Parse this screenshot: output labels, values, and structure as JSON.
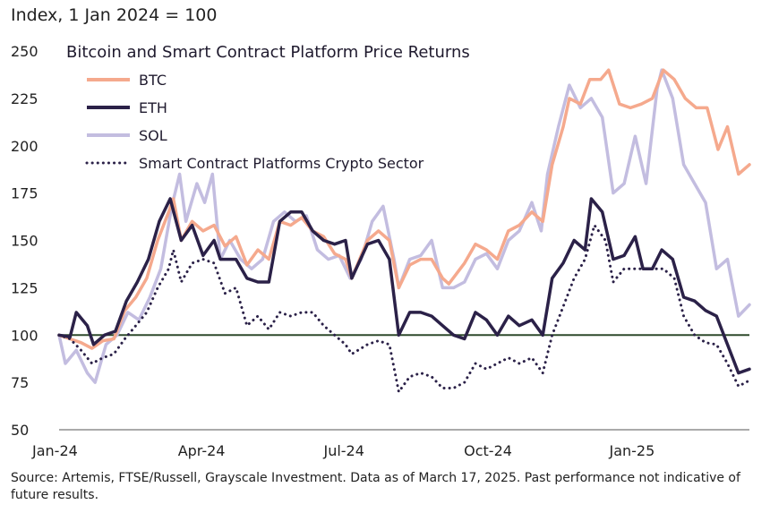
{
  "chart_data": {
    "type": "line",
    "title": "Bitcoin and Smart Contract Platform Price Returns",
    "unit_label": "Index, 1 Jan 2024 = 100",
    "ylim": [
      50,
      250
    ],
    "yticks": [
      50,
      75,
      100,
      125,
      150,
      175,
      200,
      225,
      250
    ],
    "x_start": "2024-01-01",
    "x_end": "2025-03-17",
    "xticks": [
      {
        "date": "2024-01-01",
        "label": "Jan-24"
      },
      {
        "date": "2024-04-01",
        "label": "Apr-24"
      },
      {
        "date": "2024-07-01",
        "label": "Jul-24"
      },
      {
        "date": "2024-10-01",
        "label": "Oct-24"
      },
      {
        "date": "2025-01-01",
        "label": "Jan-25"
      }
    ],
    "reference_line": {
      "value": 100,
      "color": "#2f4a2c"
    },
    "legend_position": "top-left",
    "series": [
      {
        "name": "BTC",
        "color": "#f5a98d",
        "style": "solid",
        "points": [
          [
            "2024-01-01",
            100
          ],
          [
            "2024-01-08",
            98
          ],
          [
            "2024-01-15",
            96
          ],
          [
            "2024-01-22",
            93
          ],
          [
            "2024-01-29",
            97
          ],
          [
            "2024-02-05",
            98
          ],
          [
            "2024-02-12",
            113
          ],
          [
            "2024-02-19",
            120
          ],
          [
            "2024-02-26",
            130
          ],
          [
            "2024-03-04",
            150
          ],
          [
            "2024-03-11",
            165
          ],
          [
            "2024-03-14",
            172
          ],
          [
            "2024-03-19",
            150
          ],
          [
            "2024-03-26",
            160
          ],
          [
            "2024-04-02",
            155
          ],
          [
            "2024-04-09",
            158
          ],
          [
            "2024-04-16",
            147
          ],
          [
            "2024-04-23",
            152
          ],
          [
            "2024-04-30",
            137
          ],
          [
            "2024-05-07",
            145
          ],
          [
            "2024-05-14",
            140
          ],
          [
            "2024-05-21",
            160
          ],
          [
            "2024-05-28",
            158
          ],
          [
            "2024-06-04",
            162
          ],
          [
            "2024-06-11",
            155
          ],
          [
            "2024-06-18",
            152
          ],
          [
            "2024-06-25",
            143
          ],
          [
            "2024-07-02",
            140
          ],
          [
            "2024-07-06",
            130
          ],
          [
            "2024-07-16",
            150
          ],
          [
            "2024-07-23",
            155
          ],
          [
            "2024-07-30",
            150
          ],
          [
            "2024-08-05",
            125
          ],
          [
            "2024-08-12",
            137
          ],
          [
            "2024-08-19",
            140
          ],
          [
            "2024-08-26",
            140
          ],
          [
            "2024-09-02",
            130
          ],
          [
            "2024-09-06",
            127
          ],
          [
            "2024-09-16",
            138
          ],
          [
            "2024-09-23",
            148
          ],
          [
            "2024-09-30",
            145
          ],
          [
            "2024-10-07",
            140
          ],
          [
            "2024-10-14",
            155
          ],
          [
            "2024-10-21",
            158
          ],
          [
            "2024-10-29",
            165
          ],
          [
            "2024-11-05",
            160
          ],
          [
            "2024-11-11",
            190
          ],
          [
            "2024-11-18",
            210
          ],
          [
            "2024-11-22",
            225
          ],
          [
            "2024-11-29",
            222
          ],
          [
            "2024-12-05",
            235
          ],
          [
            "2024-12-12",
            235
          ],
          [
            "2024-12-17",
            240
          ],
          [
            "2024-12-24",
            222
          ],
          [
            "2024-12-31",
            220
          ],
          [
            "2025-01-07",
            222
          ],
          [
            "2025-01-14",
            225
          ],
          [
            "2025-01-21",
            240
          ],
          [
            "2025-01-28",
            235
          ],
          [
            "2025-02-04",
            225
          ],
          [
            "2025-02-11",
            220
          ],
          [
            "2025-02-18",
            220
          ],
          [
            "2025-02-25",
            198
          ],
          [
            "2025-03-03",
            210
          ],
          [
            "2025-03-10",
            185
          ],
          [
            "2025-03-17",
            190
          ]
        ]
      },
      {
        "name": "ETH",
        "color": "#2b2148",
        "style": "solid",
        "points": [
          [
            "2024-01-01",
            100
          ],
          [
            "2024-01-08",
            99
          ],
          [
            "2024-01-12",
            112
          ],
          [
            "2024-01-19",
            105
          ],
          [
            "2024-01-23",
            95
          ],
          [
            "2024-01-30",
            100
          ],
          [
            "2024-02-06",
            102
          ],
          [
            "2024-02-13",
            118
          ],
          [
            "2024-02-20",
            128
          ],
          [
            "2024-02-27",
            140
          ],
          [
            "2024-03-05",
            160
          ],
          [
            "2024-03-12",
            172
          ],
          [
            "2024-03-19",
            150
          ],
          [
            "2024-03-26",
            158
          ],
          [
            "2024-04-02",
            142
          ],
          [
            "2024-04-09",
            150
          ],
          [
            "2024-04-13",
            140
          ],
          [
            "2024-04-23",
            140
          ],
          [
            "2024-04-30",
            130
          ],
          [
            "2024-05-07",
            128
          ],
          [
            "2024-05-14",
            128
          ],
          [
            "2024-05-21",
            160
          ],
          [
            "2024-05-28",
            165
          ],
          [
            "2024-06-04",
            165
          ],
          [
            "2024-06-11",
            155
          ],
          [
            "2024-06-18",
            150
          ],
          [
            "2024-06-25",
            148
          ],
          [
            "2024-07-02",
            150
          ],
          [
            "2024-07-06",
            130
          ],
          [
            "2024-07-16",
            148
          ],
          [
            "2024-07-23",
            150
          ],
          [
            "2024-07-30",
            140
          ],
          [
            "2024-08-05",
            100
          ],
          [
            "2024-08-12",
            112
          ],
          [
            "2024-08-19",
            112
          ],
          [
            "2024-08-26",
            110
          ],
          [
            "2024-09-02",
            105
          ],
          [
            "2024-09-09",
            100
          ],
          [
            "2024-09-16",
            98
          ],
          [
            "2024-09-23",
            112
          ],
          [
            "2024-09-30",
            108
          ],
          [
            "2024-10-07",
            100
          ],
          [
            "2024-10-14",
            110
          ],
          [
            "2024-10-21",
            105
          ],
          [
            "2024-10-29",
            108
          ],
          [
            "2024-11-05",
            100
          ],
          [
            "2024-11-11",
            130
          ],
          [
            "2024-11-18",
            138
          ],
          [
            "2024-11-25",
            150
          ],
          [
            "2024-12-02",
            145
          ],
          [
            "2024-12-06",
            172
          ],
          [
            "2024-12-13",
            165
          ],
          [
            "2024-12-20",
            140
          ],
          [
            "2024-12-27",
            142
          ],
          [
            "2025-01-03",
            152
          ],
          [
            "2025-01-08",
            135
          ],
          [
            "2025-01-14",
            135
          ],
          [
            "2025-01-20",
            145
          ],
          [
            "2025-01-27",
            140
          ],
          [
            "2025-02-03",
            120
          ],
          [
            "2025-02-10",
            118
          ],
          [
            "2025-02-17",
            113
          ],
          [
            "2025-02-24",
            110
          ],
          [
            "2025-03-03",
            95
          ],
          [
            "2025-03-10",
            80
          ],
          [
            "2025-03-17",
            82
          ]
        ]
      },
      {
        "name": "SOL",
        "color": "#c3bde0",
        "style": "solid",
        "points": [
          [
            "2024-01-01",
            100
          ],
          [
            "2024-01-05",
            85
          ],
          [
            "2024-01-12",
            92
          ],
          [
            "2024-01-19",
            80
          ],
          [
            "2024-01-24",
            75
          ],
          [
            "2024-01-31",
            95
          ],
          [
            "2024-02-07",
            100
          ],
          [
            "2024-02-14",
            112
          ],
          [
            "2024-02-21",
            108
          ],
          [
            "2024-02-28",
            120
          ],
          [
            "2024-03-06",
            135
          ],
          [
            "2024-03-13",
            168
          ],
          [
            "2024-03-18",
            185
          ],
          [
            "2024-03-22",
            160
          ],
          [
            "2024-03-29",
            180
          ],
          [
            "2024-04-03",
            170
          ],
          [
            "2024-04-08",
            185
          ],
          [
            "2024-04-13",
            140
          ],
          [
            "2024-04-19",
            150
          ],
          [
            "2024-04-26",
            140
          ],
          [
            "2024-05-03",
            135
          ],
          [
            "2024-05-10",
            140
          ],
          [
            "2024-05-17",
            160
          ],
          [
            "2024-05-24",
            165
          ],
          [
            "2024-05-31",
            160
          ],
          [
            "2024-06-07",
            163
          ],
          [
            "2024-06-14",
            145
          ],
          [
            "2024-06-21",
            140
          ],
          [
            "2024-06-28",
            142
          ],
          [
            "2024-07-05",
            130
          ],
          [
            "2024-07-12",
            140
          ],
          [
            "2024-07-19",
            160
          ],
          [
            "2024-07-26",
            168
          ],
          [
            "2024-08-02",
            140
          ],
          [
            "2024-08-05",
            125
          ],
          [
            "2024-08-12",
            140
          ],
          [
            "2024-08-19",
            142
          ],
          [
            "2024-08-26",
            150
          ],
          [
            "2024-09-02",
            125
          ],
          [
            "2024-09-09",
            125
          ],
          [
            "2024-09-16",
            128
          ],
          [
            "2024-09-23",
            140
          ],
          [
            "2024-09-30",
            143
          ],
          [
            "2024-10-07",
            135
          ],
          [
            "2024-10-14",
            150
          ],
          [
            "2024-10-21",
            155
          ],
          [
            "2024-10-29",
            170
          ],
          [
            "2024-11-04",
            155
          ],
          [
            "2024-11-08",
            185
          ],
          [
            "2024-11-15",
            210
          ],
          [
            "2024-11-22",
            232
          ],
          [
            "2024-11-29",
            220
          ],
          [
            "2024-12-06",
            225
          ],
          [
            "2024-12-13",
            215
          ],
          [
            "2024-12-20",
            175
          ],
          [
            "2024-12-27",
            180
          ],
          [
            "2025-01-03",
            205
          ],
          [
            "2025-01-10",
            180
          ],
          [
            "2025-01-17",
            230
          ],
          [
            "2025-01-20",
            240
          ],
          [
            "2025-01-27",
            225
          ],
          [
            "2025-02-03",
            190
          ],
          [
            "2025-02-10",
            180
          ],
          [
            "2025-02-17",
            170
          ],
          [
            "2025-02-24",
            135
          ],
          [
            "2025-03-03",
            140
          ],
          [
            "2025-03-10",
            110
          ],
          [
            "2025-03-17",
            116
          ]
        ]
      },
      {
        "name": "Smart Contract Platforms Crypto Sector",
        "color": "#2b2148",
        "style": "dotted",
        "points": [
          [
            "2024-01-01",
            100
          ],
          [
            "2024-01-08",
            98
          ],
          [
            "2024-01-15",
            92
          ],
          [
            "2024-01-22",
            85
          ],
          [
            "2024-01-29",
            88
          ],
          [
            "2024-02-05",
            90
          ],
          [
            "2024-02-12",
            98
          ],
          [
            "2024-02-19",
            105
          ],
          [
            "2024-02-26",
            112
          ],
          [
            "2024-03-04",
            125
          ],
          [
            "2024-03-11",
            135
          ],
          [
            "2024-03-14",
            145
          ],
          [
            "2024-03-19",
            128
          ],
          [
            "2024-03-26",
            138
          ],
          [
            "2024-04-02",
            140
          ],
          [
            "2024-04-09",
            138
          ],
          [
            "2024-04-16",
            122
          ],
          [
            "2024-04-23",
            125
          ],
          [
            "2024-04-30",
            105
          ],
          [
            "2024-05-07",
            110
          ],
          [
            "2024-05-14",
            103
          ],
          [
            "2024-05-21",
            112
          ],
          [
            "2024-05-28",
            110
          ],
          [
            "2024-06-04",
            112
          ],
          [
            "2024-06-11",
            112
          ],
          [
            "2024-06-18",
            105
          ],
          [
            "2024-06-25",
            100
          ],
          [
            "2024-07-02",
            95
          ],
          [
            "2024-07-06",
            90
          ],
          [
            "2024-07-16",
            95
          ],
          [
            "2024-07-23",
            97
          ],
          [
            "2024-07-30",
            95
          ],
          [
            "2024-08-05",
            70
          ],
          [
            "2024-08-12",
            78
          ],
          [
            "2024-08-19",
            80
          ],
          [
            "2024-08-26",
            78
          ],
          [
            "2024-09-02",
            72
          ],
          [
            "2024-09-09",
            72
          ],
          [
            "2024-09-16",
            75
          ],
          [
            "2024-09-23",
            85
          ],
          [
            "2024-09-30",
            82
          ],
          [
            "2024-10-07",
            85
          ],
          [
            "2024-10-14",
            88
          ],
          [
            "2024-10-21",
            85
          ],
          [
            "2024-10-29",
            88
          ],
          [
            "2024-11-05",
            80
          ],
          [
            "2024-11-11",
            100
          ],
          [
            "2024-11-18",
            115
          ],
          [
            "2024-11-25",
            130
          ],
          [
            "2024-12-02",
            140
          ],
          [
            "2024-12-08",
            158
          ],
          [
            "2024-12-15",
            150
          ],
          [
            "2024-12-20",
            128
          ],
          [
            "2024-12-27",
            135
          ],
          [
            "2025-01-07",
            135
          ],
          [
            "2025-01-14",
            135
          ],
          [
            "2025-01-21",
            135
          ],
          [
            "2025-01-28",
            130
          ],
          [
            "2025-02-03",
            110
          ],
          [
            "2025-02-10",
            100
          ],
          [
            "2025-02-17",
            96
          ],
          [
            "2025-02-24",
            95
          ],
          [
            "2025-03-03",
            85
          ],
          [
            "2025-03-10",
            73
          ],
          [
            "2025-03-17",
            76
          ]
        ]
      }
    ]
  },
  "source_note": "Source: Artemis, FTSE/Russell, Grayscale Investment. Data as of March 17, 2025. Past performance not indicative of future results."
}
